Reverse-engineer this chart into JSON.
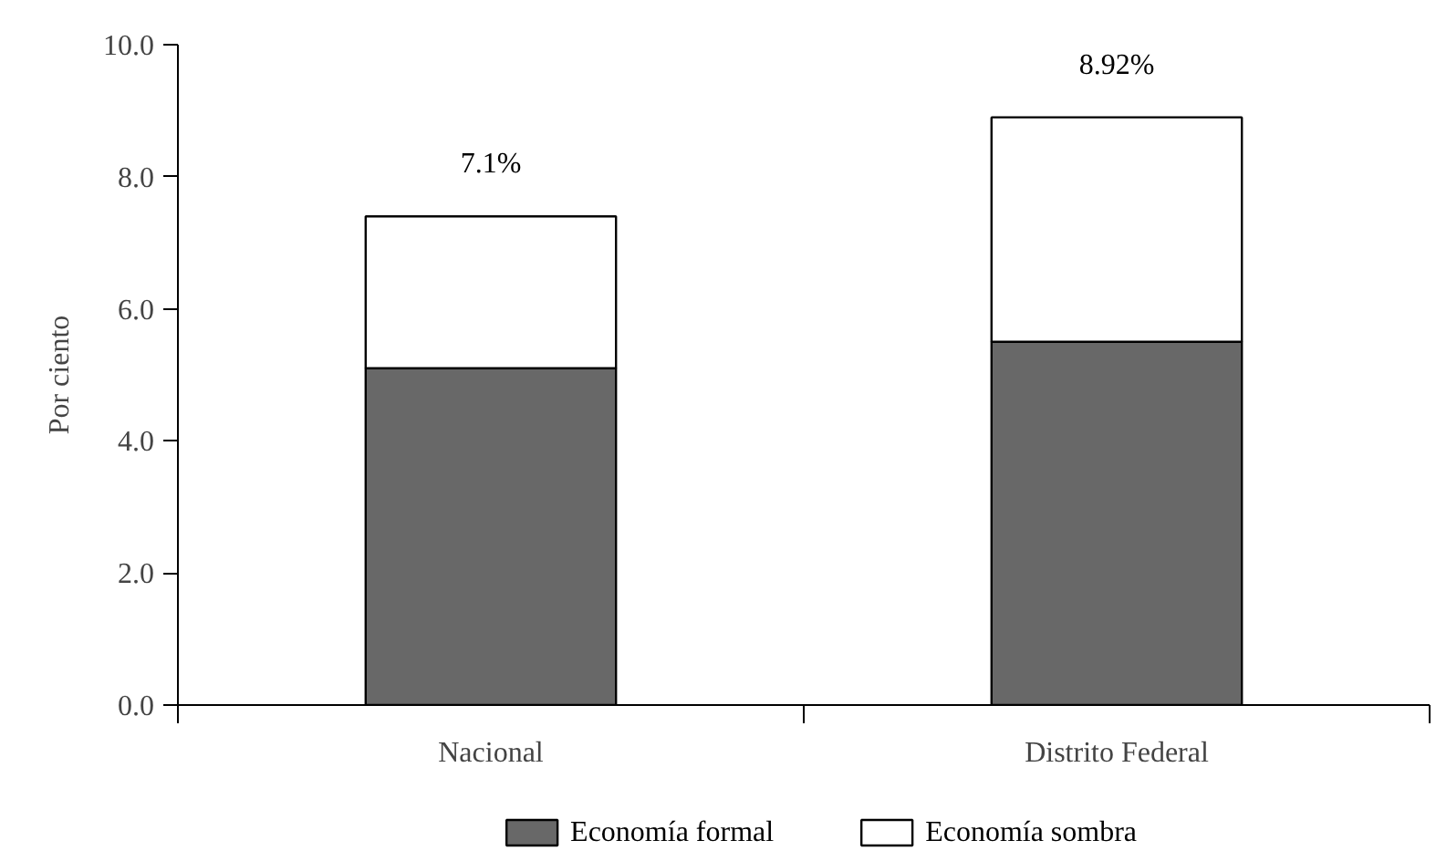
{
  "chart_data": {
    "type": "bar",
    "categories": [
      "Nacional",
      "Distrito Federal"
    ],
    "stacked": true,
    "series": [
      {
        "name": "Economía formal",
        "color": "#686868",
        "values": [
          5.1,
          5.5
        ]
      },
      {
        "name": "Economía sombra",
        "color": "#ffffff",
        "values": [
          2.3,
          3.4
        ]
      }
    ],
    "ylabel": "Por ciento",
    "ylim": [
      0,
      10
    ],
    "yticks": [
      {
        "value": 0,
        "label": "0.0"
      },
      {
        "value": 2,
        "label": "2.0"
      },
      {
        "value": 4,
        "label": "4.0"
      },
      {
        "value": 6,
        "label": "6.0"
      },
      {
        "value": 8,
        "label": "8.0"
      },
      {
        "value": 10,
        "label": "10.0"
      }
    ],
    "annotations": [
      {
        "text": "7.1%",
        "x": "Nacional",
        "y": 7.4
      },
      {
        "text": "8.92%",
        "x": "Distrito Federal",
        "y": 8.9
      }
    ],
    "legend": "bottom"
  }
}
